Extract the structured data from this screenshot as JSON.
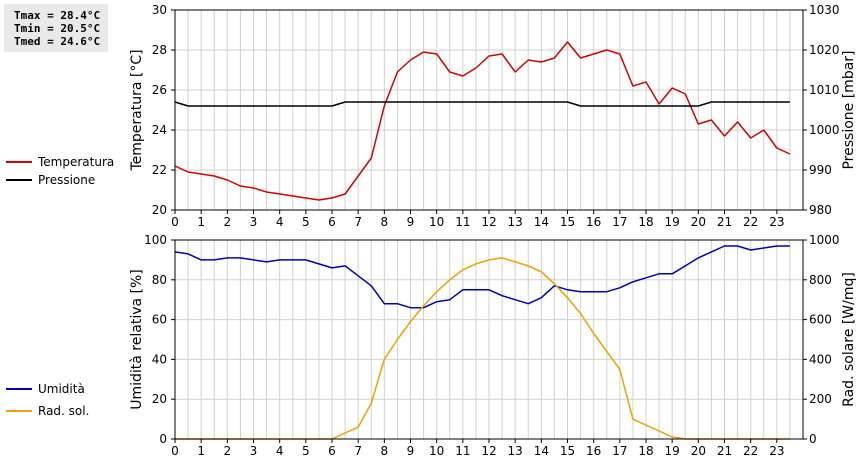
{
  "stats": {
    "tmax": "Tmax = 28.4°C",
    "tmin": "Tmin = 20.5°C",
    "tmed": "Tmed = 24.6°C"
  },
  "colors": {
    "temperature": "#d40000",
    "pressure": "#000000",
    "humidity": "#0000b4",
    "radiation": "#f0a000",
    "grid": "#d0d0d0"
  },
  "chart_data": [
    {
      "type": "line",
      "grid": true,
      "legend_position": "left",
      "x_ticks": [
        0,
        1,
        2,
        3,
        4,
        5,
        6,
        7,
        8,
        9,
        10,
        11,
        12,
        13,
        14,
        15,
        16,
        17,
        18,
        19,
        20,
        21,
        22,
        23
      ],
      "x": [
        0,
        0.5,
        1,
        1.5,
        2,
        2.5,
        3,
        3.5,
        4,
        4.5,
        5,
        5.5,
        6,
        6.5,
        7,
        7.5,
        8,
        8.5,
        9,
        9.5,
        10,
        10.5,
        11,
        11.5,
        12,
        12.5,
        13,
        13.5,
        14,
        14.5,
        15,
        15.5,
        16,
        16.5,
        17,
        17.5,
        18,
        18.5,
        19,
        19.5,
        20,
        20.5,
        21,
        21.5,
        22,
        22.5,
        23,
        23.5
      ],
      "y_left": {
        "label": "Temperatura [°C]",
        "lim": [
          20,
          30
        ],
        "ticks": [
          20,
          22,
          24,
          26,
          28,
          30
        ]
      },
      "y_right": {
        "label": "Pressione [mbar]",
        "lim": [
          980,
          1030
        ],
        "ticks": [
          980,
          990,
          1000,
          1010,
          1020,
          1030
        ]
      },
      "series": [
        {
          "name": "Temperatura",
          "axis": "left",
          "color": "#d40000",
          "values": [
            22.2,
            21.9,
            21.8,
            21.7,
            21.5,
            21.2,
            21.1,
            20.9,
            20.8,
            20.7,
            20.6,
            20.5,
            20.6,
            20.8,
            21.7,
            22.6,
            25.2,
            26.9,
            27.5,
            27.9,
            27.8,
            26.9,
            26.7,
            27.1,
            27.7,
            27.8,
            26.9,
            27.5,
            27.4,
            27.6,
            28.4,
            27.6,
            27.8,
            28.0,
            27.8,
            26.2,
            26.4,
            25.3,
            26.1,
            25.8,
            24.3,
            24.5,
            23.7,
            24.4,
            23.6,
            24.0,
            23.1,
            22.8
          ]
        },
        {
          "name": "Pressione",
          "axis": "right",
          "color": "#000000",
          "values": [
            1007,
            1006,
            1006,
            1006,
            1006,
            1006,
            1006,
            1006,
            1006,
            1006,
            1006,
            1006,
            1006,
            1007,
            1007,
            1007,
            1007,
            1007,
            1007,
            1007,
            1007,
            1007,
            1007,
            1007,
            1007,
            1007,
            1007,
            1007,
            1007,
            1007,
            1007,
            1006,
            1006,
            1006,
            1006,
            1006,
            1006,
            1006,
            1006,
            1006,
            1006,
            1007,
            1007,
            1007,
            1007,
            1007,
            1007,
            1007
          ]
        }
      ]
    },
    {
      "type": "line",
      "grid": true,
      "legend_position": "left",
      "x_ticks": [
        0,
        1,
        2,
        3,
        4,
        5,
        6,
        7,
        8,
        9,
        10,
        11,
        12,
        13,
        14,
        15,
        16,
        17,
        18,
        19,
        20,
        21,
        22,
        23
      ],
      "x": [
        0,
        0.5,
        1,
        1.5,
        2,
        2.5,
        3,
        3.5,
        4,
        4.5,
        5,
        5.5,
        6,
        6.5,
        7,
        7.5,
        8,
        8.5,
        9,
        9.5,
        10,
        10.5,
        11,
        11.5,
        12,
        12.5,
        13,
        13.5,
        14,
        14.5,
        15,
        15.5,
        16,
        16.5,
        17,
        17.5,
        18,
        18.5,
        19,
        19.5,
        20,
        20.5,
        21,
        21.5,
        22,
        22.5,
        23,
        23.5
      ],
      "y_left": {
        "label": "Umidità relativa [%]",
        "lim": [
          0,
          100
        ],
        "ticks": [
          0,
          20,
          40,
          60,
          80,
          100
        ]
      },
      "y_right": {
        "label": "Rad. solare [W/mq]",
        "lim": [
          0,
          1000
        ],
        "ticks": [
          0,
          200,
          400,
          600,
          800,
          1000
        ]
      },
      "series": [
        {
          "name": "Umidità",
          "axis": "left",
          "color": "#0000b4",
          "values": [
            94,
            93,
            90,
            90,
            91,
            91,
            90,
            89,
            90,
            90,
            90,
            88,
            86,
            87,
            82,
            77,
            68,
            68,
            66,
            66,
            69,
            70,
            75,
            75,
            75,
            72,
            70,
            68,
            71,
            77,
            75,
            74,
            74,
            74,
            76,
            79,
            81,
            83,
            83,
            87,
            91,
            94,
            97,
            97,
            95,
            96,
            97,
            97
          ]
        },
        {
          "name": "Rad. sol.",
          "axis": "right",
          "color": "#f0a000",
          "values": [
            0,
            0,
            0,
            0,
            0,
            0,
            0,
            0,
            0,
            0,
            0,
            0,
            0,
            30,
            60,
            180,
            400,
            500,
            590,
            670,
            740,
            800,
            850,
            880,
            900,
            910,
            890,
            870,
            840,
            780,
            710,
            630,
            530,
            440,
            350,
            100,
            70,
            40,
            10,
            0,
            0,
            0,
            0,
            0,
            0,
            0,
            0,
            0
          ]
        }
      ]
    }
  ]
}
